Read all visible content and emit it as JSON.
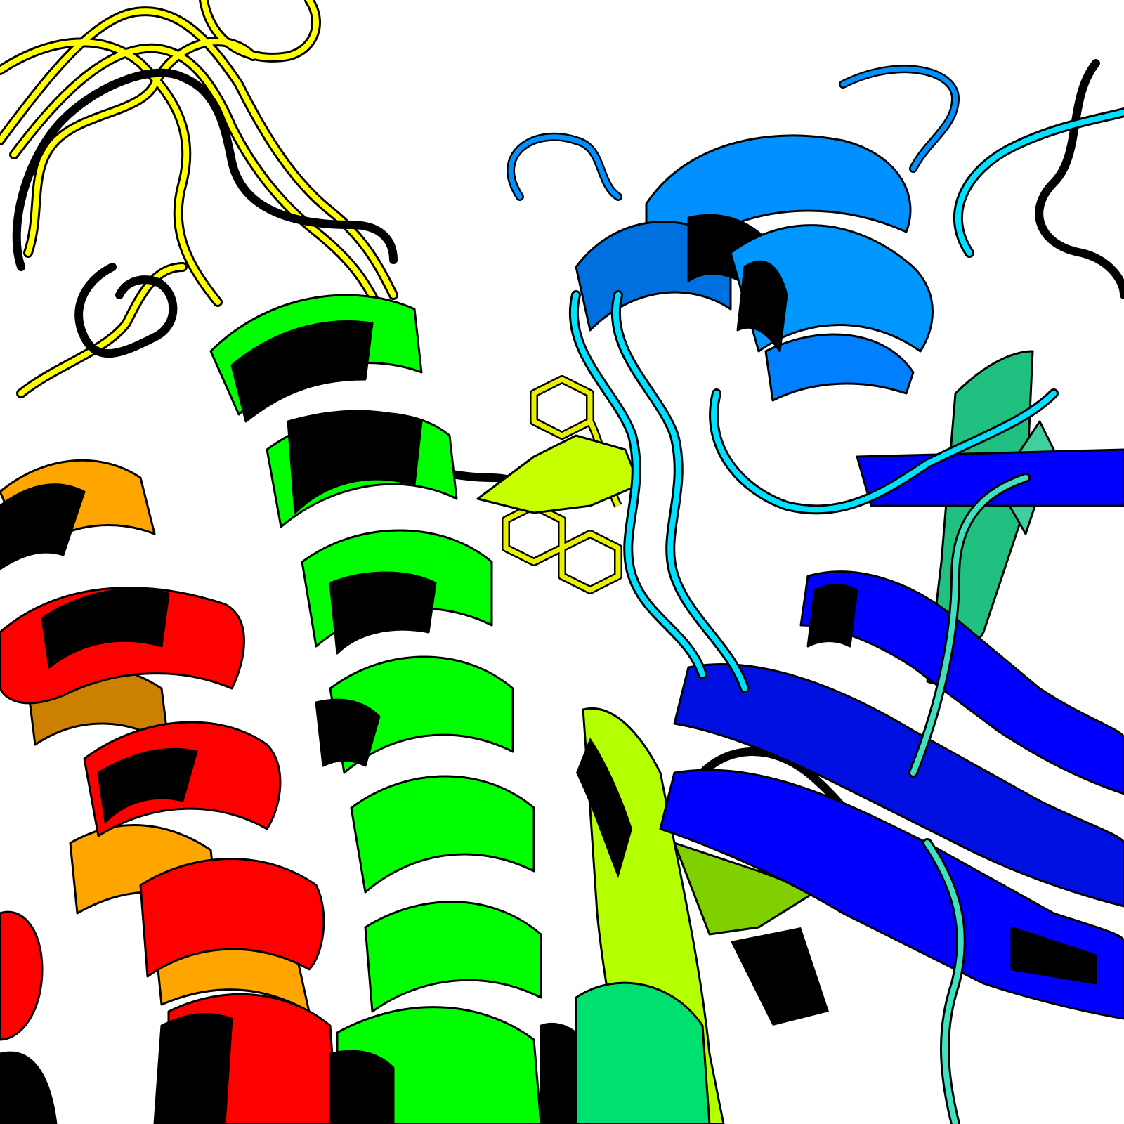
{
  "image": {
    "kind": "protein-cartoon-render",
    "background": "#ffffff",
    "palette": {
      "outline": "#000000",
      "red": "#ff0000",
      "orange": "#ffa500",
      "yellow": "#ffff00",
      "yellow_green": "#b4ff00",
      "green": "#00ff00",
      "spring_green": "#00ff80",
      "cyan": "#00ffff",
      "sky_blue": "#0080ff",
      "blue": "#0000ff",
      "black_loop": "#000000"
    },
    "regions": [
      {
        "name": "yellow-loops",
        "color": "yellow"
      },
      {
        "name": "black-loops",
        "color": "black_loop"
      },
      {
        "name": "orange-red-helix-bundle",
        "color": "red"
      },
      {
        "name": "green-helix",
        "color": "green"
      },
      {
        "name": "yellow-green-sidechains-and-strands",
        "color": "yellow_green"
      },
      {
        "name": "sky-blue-helix-cluster",
        "color": "sky_blue"
      },
      {
        "name": "cyan-loops",
        "color": "cyan"
      },
      {
        "name": "blue-beta-sheet",
        "color": "blue"
      },
      {
        "name": "teal-green-strands",
        "color": "spring_green"
      }
    ]
  }
}
